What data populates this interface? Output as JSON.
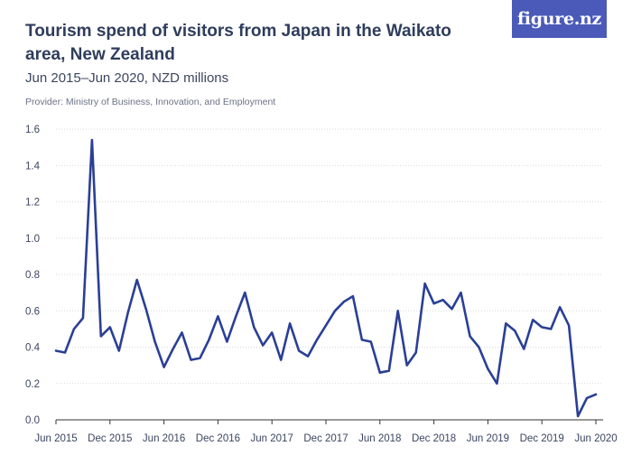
{
  "title": "Tourism spend of visitors from Japan in the Waikato area, New Zealand",
  "subtitle": "Jun 2015–Jun 2020, NZD millions",
  "provider": "Provider: Ministry of Business, Innovation, and Employment",
  "logo": "figure.nz",
  "colors": {
    "line": "#2a3f95",
    "grid": "#d9d9d9",
    "logo_bg": "#4b5ab8"
  },
  "chart_data": {
    "type": "line",
    "ylim": [
      0,
      1.6
    ],
    "yticks": [
      "0.0",
      "0.2",
      "0.4",
      "0.6",
      "0.8",
      "1.0",
      "1.2",
      "1.4",
      "1.6"
    ],
    "xtick_labels": [
      "Jun 2015",
      "Dec 2015",
      "Jun 2016",
      "Dec 2016",
      "Jun 2017",
      "Dec 2017",
      "Jun 2018",
      "Dec 2018",
      "Jun 2019",
      "Dec 2019",
      "Jun 2020"
    ],
    "grid": "horizontal",
    "x": [
      "Jun 2015",
      "Jul 2015",
      "Aug 2015",
      "Sep 2015",
      "Oct 2015",
      "Nov 2015",
      "Dec 2015",
      "Jan 2016",
      "Feb 2016",
      "Mar 2016",
      "Apr 2016",
      "May 2016",
      "Jun 2016",
      "Jul 2016",
      "Aug 2016",
      "Sep 2016",
      "Oct 2016",
      "Nov 2016",
      "Dec 2016",
      "Jan 2017",
      "Feb 2017",
      "Mar 2017",
      "Apr 2017",
      "May 2017",
      "Jun 2017",
      "Jul 2017",
      "Aug 2017",
      "Sep 2017",
      "Oct 2017",
      "Nov 2017",
      "Dec 2017",
      "Jan 2018",
      "Feb 2018",
      "Mar 2018",
      "Apr 2018",
      "May 2018",
      "Jun 2018",
      "Jul 2018",
      "Aug 2018",
      "Sep 2018",
      "Oct 2018",
      "Nov 2018",
      "Dec 2018",
      "Jan 2019",
      "Feb 2019",
      "Mar 2019",
      "Apr 2019",
      "May 2019",
      "Jun 2019",
      "Jul 2019",
      "Aug 2019",
      "Sep 2019",
      "Oct 2019",
      "Nov 2019",
      "Dec 2019",
      "Jan 2020",
      "Feb 2020",
      "Mar 2020",
      "Apr 2020",
      "May 2020",
      "Jun 2020"
    ],
    "values": [
      0.38,
      0.37,
      0.5,
      0.56,
      1.54,
      0.46,
      0.51,
      0.38,
      0.59,
      0.77,
      0.61,
      0.43,
      0.29,
      0.39,
      0.48,
      0.33,
      0.34,
      0.44,
      0.57,
      0.43,
      0.57,
      0.7,
      0.51,
      0.41,
      0.48,
      0.33,
      0.53,
      0.38,
      0.35,
      0.44,
      0.52,
      0.6,
      0.65,
      0.68,
      0.44,
      0.43,
      0.26,
      0.27,
      0.6,
      0.3,
      0.37,
      0.75,
      0.64,
      0.66,
      0.61,
      0.7,
      0.46,
      0.4,
      0.28,
      0.2,
      0.53,
      0.49,
      0.39,
      0.55,
      0.51,
      0.5,
      0.62,
      0.52,
      0.02,
      0.12,
      0.14
    ]
  }
}
